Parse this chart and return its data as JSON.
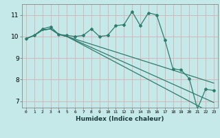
{
  "xlabel": "Humidex (Indice chaleur)",
  "background_color": "#c5e8e8",
  "grid_color": "#d4b8b8",
  "line_color": "#2e7d6e",
  "xlim": [
    -0.5,
    23.5
  ],
  "ylim": [
    6.7,
    11.5
  ],
  "xticks": [
    0,
    1,
    2,
    3,
    4,
    5,
    6,
    7,
    8,
    9,
    10,
    11,
    12,
    13,
    14,
    15,
    16,
    17,
    18,
    19,
    20,
    21,
    22,
    23
  ],
  "yticks": [
    7,
    8,
    9,
    10,
    11
  ],
  "series1_x": [
    0,
    1,
    2,
    3,
    4,
    5,
    6,
    7,
    8,
    9,
    10,
    11,
    12,
    13,
    14,
    15,
    16,
    17,
    18,
    19,
    20,
    21,
    22,
    23
  ],
  "series1_y": [
    9.9,
    10.05,
    10.35,
    10.45,
    10.1,
    10.05,
    10.0,
    10.05,
    10.35,
    10.0,
    10.05,
    10.5,
    10.55,
    11.15,
    10.5,
    11.1,
    11.0,
    9.85,
    8.5,
    8.45,
    8.05,
    6.65,
    7.55,
    7.5
  ],
  "series2_x": [
    0,
    1,
    2,
    3,
    4,
    5,
    6,
    7,
    8,
    9,
    10,
    11,
    12,
    13,
    14,
    15,
    16,
    17,
    18,
    19,
    20,
    21,
    22,
    23
  ],
  "series2_y": [
    9.9,
    10.05,
    10.3,
    10.35,
    10.1,
    10.0,
    9.88,
    9.76,
    9.64,
    9.52,
    9.4,
    9.28,
    9.16,
    9.04,
    8.92,
    8.8,
    8.68,
    8.56,
    8.44,
    8.32,
    8.2,
    8.08,
    7.96,
    7.84
  ],
  "series3_x": [
    0,
    1,
    2,
    3,
    4,
    5,
    6,
    7,
    8,
    9,
    10,
    11,
    12,
    13,
    14,
    15,
    16,
    17,
    18,
    19,
    20,
    21,
    22,
    23
  ],
  "series3_y": [
    9.9,
    10.05,
    10.3,
    10.35,
    10.1,
    10.0,
    9.83,
    9.66,
    9.49,
    9.32,
    9.15,
    8.98,
    8.81,
    8.64,
    8.47,
    8.3,
    8.13,
    7.96,
    7.79,
    7.62,
    7.45,
    7.28,
    7.11,
    6.94
  ],
  "series4_x": [
    0,
    1,
    2,
    3,
    4,
    5,
    6,
    7,
    8,
    9,
    10,
    11,
    12,
    13,
    14,
    15,
    16,
    17,
    18,
    19,
    20,
    21,
    22,
    23
  ],
  "series4_y": [
    9.9,
    10.05,
    10.3,
    10.35,
    10.1,
    10.0,
    9.8,
    9.6,
    9.4,
    9.2,
    9.0,
    8.8,
    8.6,
    8.4,
    8.2,
    8.0,
    7.8,
    7.6,
    7.4,
    7.2,
    7.0,
    6.8,
    6.6,
    6.4
  ]
}
